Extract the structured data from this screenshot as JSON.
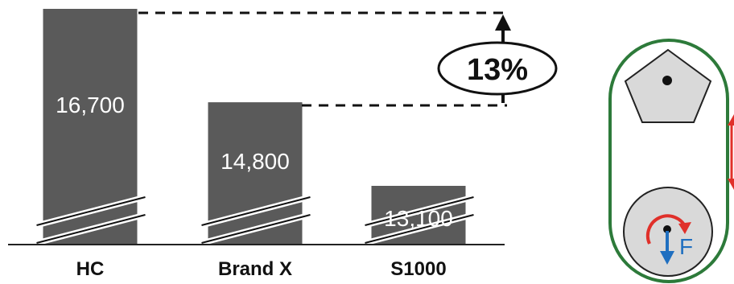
{
  "chart_data": {
    "type": "bar",
    "categories": [
      "HC",
      "Brand X",
      "S1000"
    ],
    "values": [
      16700,
      14800,
      13100
    ],
    "value_labels": [
      "16,700",
      "14,800",
      "13,100"
    ],
    "title": "",
    "xlabel": "",
    "ylabel": "",
    "y_axis_broken": true,
    "grid": false,
    "annotation": {
      "text": "13%",
      "between": [
        "HC",
        "Brand X"
      ]
    }
  },
  "diagram": {
    "force_label": "F",
    "icons": [
      "pentagon-icon",
      "rotation-arrow-icon",
      "down-arrow-icon",
      "double-arrow-icon"
    ]
  },
  "colors": {
    "bar": "#5a5a5a",
    "axis": "#222222",
    "frame": "#2d7a3a",
    "shape_fill": "#d9d9d9",
    "rotation": "#e0302a",
    "force": "#1f6fc0"
  }
}
